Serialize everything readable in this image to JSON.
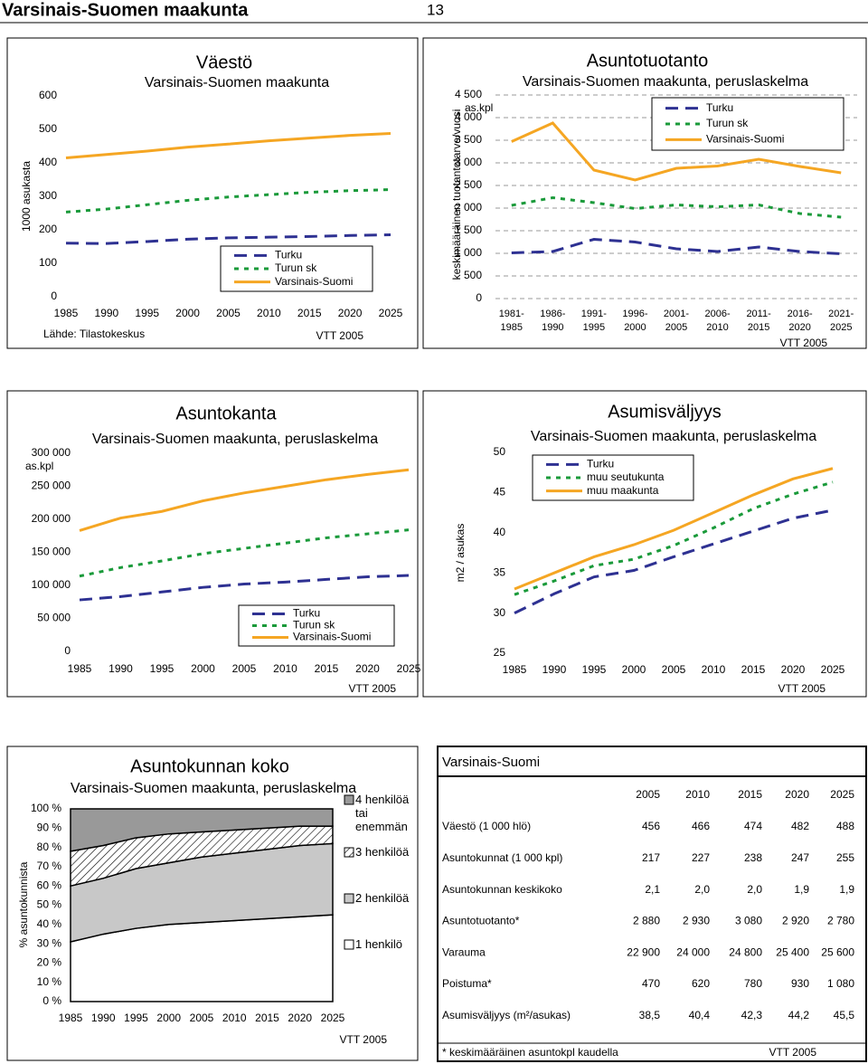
{
  "header": {
    "title": "Varsinais-Suomen maakunta",
    "page": "13"
  },
  "chart_data": [
    {
      "type": "line",
      "title": "Väestö",
      "subtitle": "Varsinais-Suomen maakunta",
      "y_label": "1000 asukasta",
      "source": "Lähde: Tilastokeskus",
      "credit": "VTT 2005",
      "x": [
        1985,
        1990,
        1995,
        2000,
        2005,
        2010,
        2015,
        2020,
        2025
      ],
      "xlim": [
        1985,
        2025
      ],
      "ylim": [
        0,
        600
      ],
      "yticks": [
        0,
        100,
        200,
        300,
        400,
        500,
        600
      ],
      "grid": false,
      "legend": "bottom-right",
      "series": [
        {
          "name": "Turku",
          "color": "#2e3192",
          "line_style": "dashed",
          "values": [
            160,
            159,
            165,
            172,
            176,
            178,
            180,
            183,
            185
          ]
        },
        {
          "name": "Turun sk",
          "color": "#1a9a3a",
          "line_style": "dotted",
          "values": [
            253,
            262,
            275,
            288,
            298,
            305,
            312,
            317,
            320
          ]
        },
        {
          "name": "Varsinais-Suomi",
          "color": "#f5a623",
          "line_style": "solid",
          "values": [
            415,
            425,
            435,
            447,
            456,
            466,
            474,
            482,
            488
          ]
        }
      ]
    },
    {
      "type": "line",
      "title": "Asuntotuotanto",
      "subtitle": "Varsinais-Suomen maakunta, peruslaskelma",
      "y_label": "keskimääräinen tuotantotarve/vuosi",
      "unit": "as.kpl",
      "credit": "VTT 2005",
      "categories": [
        "1981- 1985",
        "1986- 1990",
        "1991- 1995",
        "1996- 2000",
        "2001- 2005",
        "2006- 2010",
        "2011- 2015",
        "2016- 2020",
        "2021- 2025"
      ],
      "ylim": [
        0,
        4500
      ],
      "yticks": [
        0,
        500,
        {
          "value": 1000,
          "label": "1 000"
        },
        {
          "value": 1500,
          "label": "1 500"
        },
        {
          "value": 2000,
          "label": "2 000"
        },
        {
          "value": 2500,
          "label": "2 500"
        },
        {
          "value": 3000,
          "label": "3 000"
        },
        {
          "value": 3500,
          "label": "3 500"
        },
        {
          "value": 4000,
          "label": "4 000"
        },
        {
          "value": 4500,
          "label": "4 500"
        }
      ],
      "grid": true,
      "legend": "top-right",
      "series": [
        {
          "name": "Turku",
          "color": "#2e3192",
          "line_style": "dashed",
          "values": [
            1010,
            1040,
            1310,
            1250,
            1100,
            1040,
            1140,
            1040,
            990
          ]
        },
        {
          "name": "Turun sk",
          "color": "#1a9a3a",
          "line_style": "dotted",
          "values": [
            2060,
            2230,
            2120,
            1990,
            2070,
            2030,
            2070,
            1880,
            1800
          ]
        },
        {
          "name": "Varsinais-Suomi",
          "color": "#f5a623",
          "line_style": "solid",
          "values": [
            3470,
            3880,
            2840,
            2620,
            2880,
            2930,
            3080,
            2920,
            2780
          ]
        }
      ]
    },
    {
      "type": "line",
      "title": "Asuntokanta",
      "subtitle": "Varsinais-Suomen maakunta, peruslaskelma",
      "unit": "as.kpl",
      "credit": "VTT 2005",
      "x": [
        1985,
        1990,
        1995,
        2000,
        2005,
        2010,
        2015,
        2020,
        2025
      ],
      "xlim": [
        1985,
        2025
      ],
      "ylim": [
        0,
        300000
      ],
      "yticks": [
        0,
        {
          "value": 50000,
          "label": "50 000"
        },
        {
          "value": 100000,
          "label": "100 000"
        },
        {
          "value": 150000,
          "label": "150 000"
        },
        {
          "value": 200000,
          "label": "200 000"
        },
        {
          "value": 250000,
          "label": "250 000"
        },
        {
          "value": 300000,
          "label": "300 000"
        }
      ],
      "grid": false,
      "legend": "bottom",
      "series": [
        {
          "name": "Turku",
          "color": "#2e3192",
          "line_style": "dashed",
          "values": [
            78000,
            83000,
            90000,
            97000,
            102000,
            105000,
            109000,
            113000,
            115000
          ]
        },
        {
          "name": "Turun sk",
          "color": "#1a9a3a",
          "line_style": "dotted",
          "values": [
            114000,
            127000,
            137000,
            148000,
            156000,
            164000,
            172000,
            178000,
            184000
          ]
        },
        {
          "name": "Varsinais-Suomi",
          "color": "#f5a623",
          "line_style": "solid",
          "values": [
            183000,
            202000,
            212000,
            228000,
            240000,
            250000,
            260000,
            268000,
            275000
          ]
        }
      ]
    },
    {
      "type": "line",
      "title": "Asumisväljyys",
      "subtitle": "Varsinais-Suomen maakunta, peruslaskelma",
      "y_label": "m2 / asukas",
      "credit": "VTT 2005",
      "x": [
        1985,
        1990,
        1995,
        2000,
        2005,
        2010,
        2015,
        2020,
        2025
      ],
      "xlim": [
        1985,
        2025
      ],
      "ylim": [
        25,
        50
      ],
      "yticks": [
        25,
        30,
        35,
        40,
        45,
        50
      ],
      "grid": false,
      "legend": "top-left",
      "series": [
        {
          "name": "Turku",
          "color": "#2e3192",
          "line_style": "dashed",
          "values": [
            30,
            32.4,
            34.5,
            35.3,
            37,
            38.6,
            40.2,
            41.8,
            42.8
          ]
        },
        {
          "name": "muu seutukunta",
          "color": "#1a9a3a",
          "line_style": "dotted",
          "values": [
            32.3,
            34,
            35.9,
            36.7,
            38.4,
            40.6,
            43,
            44.8,
            46.3
          ]
        },
        {
          "name": "muu maakunta",
          "color": "#f5a623",
          "line_style": "solid",
          "values": [
            33,
            35,
            37,
            38.5,
            40.3,
            42.5,
            44.7,
            46.7,
            48
          ]
        }
      ]
    },
    {
      "type": "area",
      "title": "Asuntokunnan koko",
      "subtitle": "Varsinais-Suomen maakunta, peruslaskelma",
      "y_label": "% asuntokunnista",
      "credit": "VTT 2005",
      "x": [
        1985,
        1990,
        1995,
        2000,
        2005,
        2010,
        2015,
        2020,
        2025
      ],
      "xlim": [
        1985,
        2025
      ],
      "ylim": [
        0,
        100
      ],
      "yticks": [
        {
          "value": 0,
          "label": "0 %"
        },
        {
          "value": 10,
          "label": "10 %"
        },
        {
          "value": 20,
          "label": "20 %"
        },
        {
          "value": 30,
          "label": "30 %"
        },
        {
          "value": 40,
          "label": "40 %"
        },
        {
          "value": 50,
          "label": "50 %"
        },
        {
          "value": 60,
          "label": "60 %"
        },
        {
          "value": 70,
          "label": "70 %"
        },
        {
          "value": 80,
          "label": "80 %"
        },
        {
          "value": 90,
          "label": "90 %"
        },
        {
          "value": 100,
          "label": "100 %"
        }
      ],
      "grid": false,
      "legend": "right",
      "series": [
        {
          "name": "1 henkilö",
          "color": "#ffffff",
          "values": [
            31,
            35,
            38,
            40,
            41,
            42,
            43,
            44,
            45
          ]
        },
        {
          "name": "2 henkilöä",
          "color": "#c8c8c8",
          "values": [
            29,
            29,
            31,
            32,
            34,
            35,
            36,
            37,
            37
          ]
        },
        {
          "name": "3 henkilöä",
          "color": "#ffffff",
          "pattern": "diagonal-hatch",
          "values": [
            18,
            17,
            16,
            15,
            13,
            12,
            11,
            10,
            9
          ]
        },
        {
          "name": "4 henkilöä tai enemmän",
          "color": "#999999",
          "values": [
            22,
            19,
            15,
            13,
            12,
            11,
            10,
            9,
            9
          ]
        }
      ]
    }
  ],
  "table": {
    "title": "Varsinais-Suomi",
    "columns": [
      "2005",
      "2010",
      "2015",
      "2020",
      "2025"
    ],
    "rows": [
      {
        "label": "Väestö (1 000 hlö)",
        "values": [
          "456",
          "466",
          "474",
          "482",
          "488"
        ]
      },
      {
        "label": "Asuntokunnat (1 000 kpl)",
        "values": [
          "217",
          "227",
          "238",
          "247",
          "255"
        ]
      },
      {
        "label": "Asuntokunnan keskikoko",
        "values": [
          "2,1",
          "2,0",
          "2,0",
          "1,9",
          "1,9"
        ]
      },
      {
        "label": "Asuntotuotanto*",
        "values": [
          "2 880",
          "2 930",
          "3 080",
          "2 920",
          "2 780"
        ]
      },
      {
        "label": "Varauma",
        "values": [
          "22 900",
          "24 000",
          "24 800",
          "25 400",
          "25 600"
        ]
      },
      {
        "label": "Poistuma*",
        "values": [
          "470",
          "620",
          "780",
          "930",
          "1 080"
        ]
      },
      {
        "label": "Asumisväljyys (m²/asukas)",
        "values": [
          "38,5",
          "40,4",
          "42,3",
          "44,2",
          "45,5"
        ]
      }
    ],
    "footnote": "* keskimääräinen asuntokpl kaudella",
    "credit": "VTT 2005"
  }
}
